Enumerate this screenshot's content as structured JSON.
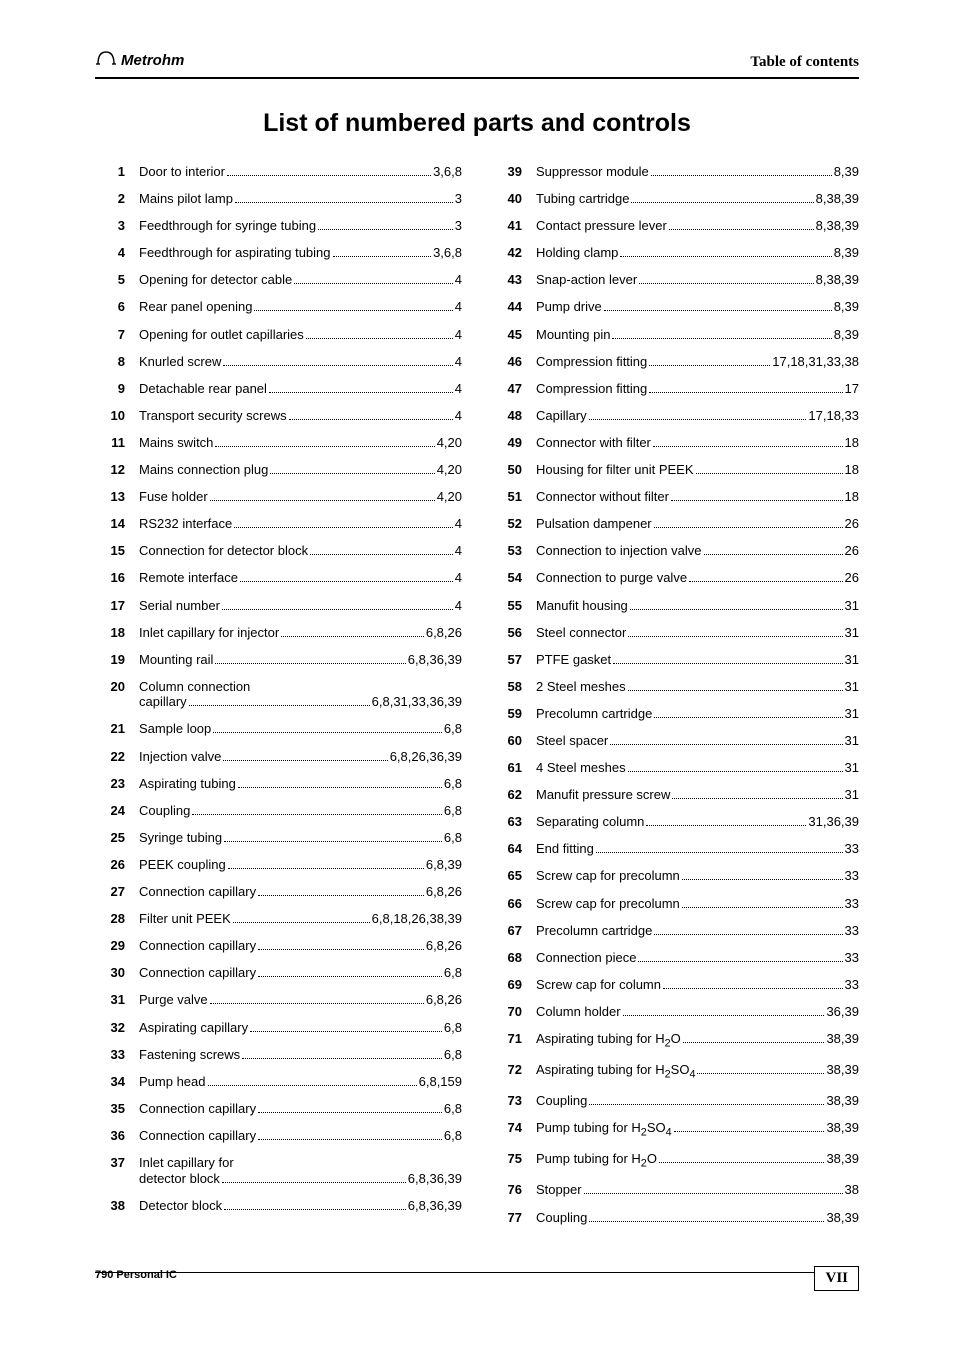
{
  "header": {
    "logo_text": "Metrohm",
    "right_text": "Table of contents"
  },
  "title": "List of numbered parts and controls",
  "footer": {
    "left": "790 Personal IC",
    "page": "VII"
  },
  "left_col": [
    {
      "n": "1",
      "label": "Door to interior",
      "pages": "3,6,8"
    },
    {
      "n": "2",
      "label": "Mains pilot lamp",
      "pages": "3"
    },
    {
      "n": "3",
      "label": "Feedthrough for syringe tubing",
      "pages": "3"
    },
    {
      "n": "4",
      "label": "Feedthrough for aspirating tubing",
      "pages": "3,6,8"
    },
    {
      "n": "5",
      "label": "Opening for detector cable",
      "pages": "4"
    },
    {
      "n": "6",
      "label": "Rear panel opening",
      "pages": "4"
    },
    {
      "n": "7",
      "label": "Opening for outlet capillaries",
      "pages": "4"
    },
    {
      "n": "8",
      "label": "Knurled screw",
      "pages": "4"
    },
    {
      "n": "9",
      "label": "Detachable rear panel",
      "pages": "4"
    },
    {
      "n": "10",
      "label": "Transport security screws",
      "pages": "4"
    },
    {
      "n": "11",
      "label": "Mains switch",
      "pages": "4,20"
    },
    {
      "n": "12",
      "label": "Mains connection plug",
      "pages": "4,20"
    },
    {
      "n": "13",
      "label": "Fuse holder",
      "pages": "4,20"
    },
    {
      "n": "14",
      "label": "RS232 interface",
      "pages": "4"
    },
    {
      "n": "15",
      "label": "Connection for detector block",
      "pages": "4"
    },
    {
      "n": "16",
      "label": "Remote interface",
      "pages": "4"
    },
    {
      "n": "17",
      "label": "Serial number",
      "pages": "4"
    },
    {
      "n": "18",
      "label": "Inlet capillary for injector",
      "pages": "6,8,26"
    },
    {
      "n": "19",
      "label": "Mounting rail",
      "pages": "6,8,36,39"
    },
    {
      "n": "20",
      "label": "Column connection",
      "label2": "capillary",
      "pages": "6,8,31,33,36,39",
      "multi": true
    },
    {
      "n": "21",
      "label": "Sample loop",
      "pages": "6,8"
    },
    {
      "n": "22",
      "label": "Injection valve",
      "pages": "6,8,26,36,39"
    },
    {
      "n": "23",
      "label": "Aspirating tubing",
      "pages": "6,8"
    },
    {
      "n": "24",
      "label": "Coupling",
      "pages": "6,8"
    },
    {
      "n": "25",
      "label": "Syringe tubing",
      "pages": "6,8"
    },
    {
      "n": "26",
      "label": "PEEK coupling",
      "pages": "6,8,39"
    },
    {
      "n": "27",
      "label": "Connection capillary",
      "pages": "6,8,26"
    },
    {
      "n": "28",
      "label": "Filter unit PEEK",
      "pages": "6,8,18,26,38,39"
    },
    {
      "n": "29",
      "label": "Connection capillary",
      "pages": "6,8,26"
    },
    {
      "n": "30",
      "label": "Connection capillary",
      "pages": "6,8"
    },
    {
      "n": "31",
      "label": "Purge valve",
      "pages": "6,8,26"
    },
    {
      "n": "32",
      "label": "Aspirating capillary",
      "pages": "6,8"
    },
    {
      "n": "33",
      "label": "Fastening screws",
      "pages": "6,8"
    },
    {
      "n": "34",
      "label": "Pump head",
      "pages": "6,8,159"
    },
    {
      "n": "35",
      "label": "Connection capillary",
      "pages": "6,8"
    },
    {
      "n": "36",
      "label": "Connection capillary",
      "pages": "6,8"
    },
    {
      "n": "37",
      "label": "Inlet capillary for",
      "label2": "detector block",
      "pages": "6,8,36,39",
      "multi": true
    },
    {
      "n": "38",
      "label": "Detector block",
      "pages": "6,8,36,39"
    }
  ],
  "right_col": [
    {
      "n": "39",
      "label": "Suppressor module",
      "pages": "8,39"
    },
    {
      "n": "40",
      "label": "Tubing cartridge",
      "pages": "8,38,39"
    },
    {
      "n": "41",
      "label": "Contact pressure lever",
      "pages": "8,38,39"
    },
    {
      "n": "42",
      "label": "Holding clamp",
      "pages": "8,39"
    },
    {
      "n": "43",
      "label": "Snap-action lever",
      "pages": "8,38,39"
    },
    {
      "n": "44",
      "label": "Pump drive",
      "pages": "8,39"
    },
    {
      "n": "45",
      "label": "Mounting pin",
      "pages": "8,39"
    },
    {
      "n": "46",
      "label": "Compression fitting",
      "pages": "17,18,31,33,38"
    },
    {
      "n": "47",
      "label": "Compression fitting",
      "pages": "17"
    },
    {
      "n": "48",
      "label": "Capillary",
      "pages": "17,18,33"
    },
    {
      "n": "49",
      "label": "Connector with filter",
      "pages": "18"
    },
    {
      "n": "50",
      "label": "Housing for filter unit PEEK",
      "pages": "18"
    },
    {
      "n": "51",
      "label": "Connector without filter",
      "pages": "18"
    },
    {
      "n": "52",
      "label": "Pulsation dampener",
      "pages": "26"
    },
    {
      "n": "53",
      "label": "Connection to injection valve",
      "pages": "26"
    },
    {
      "n": "54",
      "label": "Connection to purge valve",
      "pages": "26"
    },
    {
      "n": "55",
      "label": "Manufit housing",
      "pages": "31"
    },
    {
      "n": "56",
      "label": "Steel connector",
      "pages": "31"
    },
    {
      "n": "57",
      "label": "PTFE gasket",
      "pages": "31"
    },
    {
      "n": "58",
      "label": "2 Steel meshes",
      "pages": "31"
    },
    {
      "n": "59",
      "label": "Precolumn cartridge",
      "pages": "31"
    },
    {
      "n": "60",
      "label": "Steel spacer",
      "pages": "31"
    },
    {
      "n": "61",
      "label": "4 Steel meshes",
      "pages": "31"
    },
    {
      "n": "62",
      "label": "Manufit pressure screw",
      "pages": "31"
    },
    {
      "n": "63",
      "label": "Separating column",
      "pages": "31,36,39"
    },
    {
      "n": "64",
      "label": "End fitting",
      "pages": "33"
    },
    {
      "n": "65",
      "label": "Screw cap for precolumn",
      "pages": "33"
    },
    {
      "n": "66",
      "label": "Screw cap for precolumn",
      "pages": "33"
    },
    {
      "n": "67",
      "label": "Precolumn cartridge",
      "pages": "33"
    },
    {
      "n": "68",
      "label": "Connection piece",
      "pages": "33"
    },
    {
      "n": "69",
      "label": "Screw cap for column",
      "pages": "33"
    },
    {
      "n": "70",
      "label": "Column holder",
      "pages": "36,39"
    },
    {
      "n": "71",
      "label_html": "Aspirating tubing for H<sub>2</sub>O",
      "pages": "38,39"
    },
    {
      "n": "72",
      "label_html": "Aspirating tubing for H<sub>2</sub>SO<sub>4</sub>",
      "pages": "38,39"
    },
    {
      "n": "73",
      "label": "Coupling",
      "pages": "38,39"
    },
    {
      "n": "74",
      "label_html": "Pump tubing for H<sub>2</sub>SO<sub>4</sub>",
      "pages": "38,39"
    },
    {
      "n": "75",
      "label_html": "Pump tubing for H<sub>2</sub>O",
      "pages": "38,39"
    },
    {
      "n": "76",
      "label": "Stopper",
      "pages": "38"
    },
    {
      "n": "77",
      "label": "Coupling",
      "pages": "38,39"
    }
  ]
}
